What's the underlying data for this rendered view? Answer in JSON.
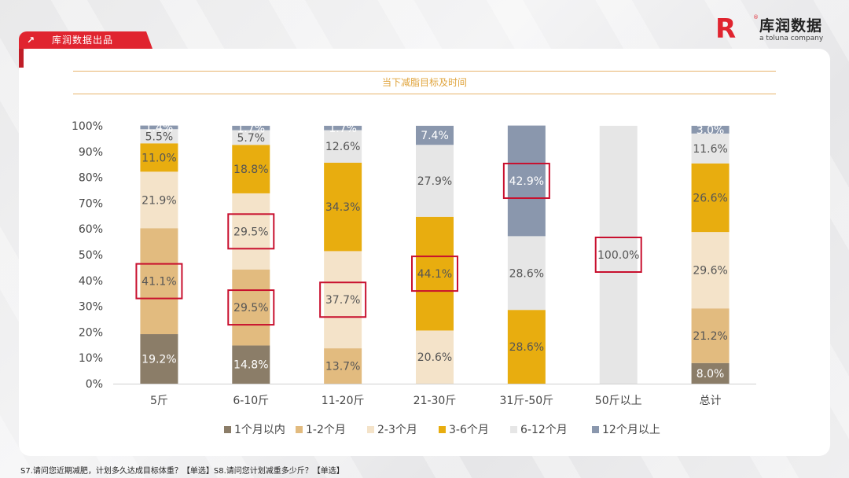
{
  "brand": {
    "tag_label": "库润数据出品",
    "logo_name": "库润数据",
    "logo_sub": "a toluna company"
  },
  "footnote": "S7.请问您近期减肥，计划多久达成目标体重？【单选】S8.请问您计划减重多少斤？【单选】",
  "chart_data": {
    "type": "bar",
    "stacked": "percent",
    "title": "当下减脂目标及时间",
    "categories": [
      "5斤",
      "6-10斤",
      "11-20斤",
      "21-30斤",
      "31斤-50斤",
      "50斤以上",
      "总计"
    ],
    "series": [
      {
        "name": "1个月以内",
        "color": "#8b7d68",
        "values": [
          19.2,
          14.8,
          0,
          0,
          0,
          0,
          8.0
        ]
      },
      {
        "name": "1-2个月",
        "color": "#e2bb7f",
        "values": [
          41.1,
          29.5,
          13.7,
          0,
          0,
          0,
          21.2
        ]
      },
      {
        "name": "2-3个月",
        "color": "#f4e3c9",
        "values": [
          21.9,
          29.5,
          37.7,
          20.6,
          0,
          0,
          29.6
        ]
      },
      {
        "name": "3-6个月",
        "color": "#e8ad0f",
        "values": [
          11.0,
          18.8,
          34.3,
          44.1,
          28.6,
          0,
          26.6
        ]
      },
      {
        "name": "6-12个月",
        "color": "#e6e6e6",
        "values": [
          5.5,
          5.7,
          12.6,
          27.9,
          28.6,
          100.0,
          11.6
        ]
      },
      {
        "name": "12个月以上",
        "color": "#8a97ad",
        "values": [
          1.4,
          1.7,
          1.7,
          7.4,
          42.9,
          0,
          3.0
        ]
      }
    ],
    "ylim": [
      0,
      100
    ],
    "yticks": [
      "0%",
      "10%",
      "20%",
      "30%",
      "40%",
      "50%",
      "60%",
      "70%",
      "80%",
      "90%",
      "100%"
    ],
    "highlighted": [
      [
        0,
        1
      ],
      [
        1,
        1
      ],
      [
        1,
        2
      ],
      [
        2,
        2
      ],
      [
        3,
        3
      ],
      [
        4,
        5
      ],
      [
        5,
        4
      ]
    ],
    "highlight_color": "#c8102e",
    "legend_position": "bottom",
    "grid": false
  }
}
